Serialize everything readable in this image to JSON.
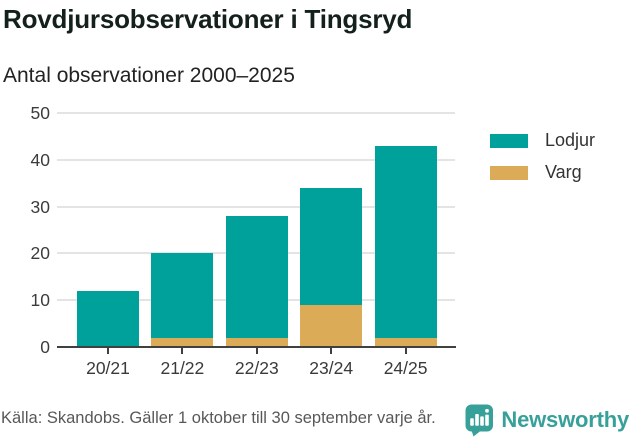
{
  "header": {
    "title": "Rovdjursobservationer i Tingsryd"
  },
  "chart_data": {
    "type": "bar",
    "stacked": true,
    "title": "Antal observationer 2000–2025",
    "categories": [
      "20/21",
      "21/22",
      "22/23",
      "23/24",
      "24/25"
    ],
    "series": [
      {
        "name": "Lodjur",
        "color": "#00a19a",
        "values": [
          12,
          18,
          26,
          25,
          41
        ]
      },
      {
        "name": "Varg",
        "color": "#dbab57",
        "values": [
          0,
          2,
          2,
          9,
          2
        ]
      }
    ],
    "stack_bottom_first": [
      "Varg",
      "Lodjur"
    ],
    "totals": [
      12,
      20,
      28,
      34,
      43
    ],
    "ylabel": "",
    "xlabel": "",
    "ylim": [
      0,
      50
    ],
    "yticks": [
      0,
      10,
      20,
      30,
      40,
      50
    ],
    "grid": true,
    "legend_position": "right"
  },
  "legend": {
    "items": [
      {
        "label": "Lodjur",
        "color": "#00a19a"
      },
      {
        "label": "Varg",
        "color": "#dbab57"
      }
    ]
  },
  "footer": {
    "source": "Källa: Skandobs. Gäller 1 oktober till 30 september varje år.",
    "brand": "Newsworthy"
  },
  "colors": {
    "lodjur": "#00a19a",
    "varg": "#dbab57",
    "gridline": "#e4e4e4",
    "axis": "#404040",
    "brand_teal": "#37a199"
  }
}
